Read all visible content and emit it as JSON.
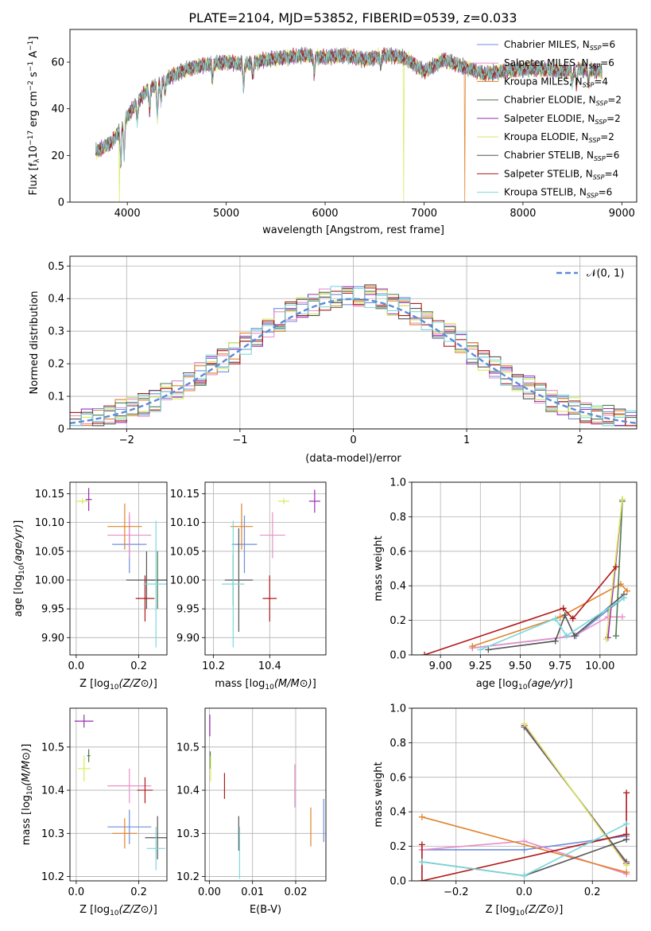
{
  "figure": {
    "title": "PLATE=2104, MJD=53852, FIBERID=0539, z=0.033",
    "colors": [
      "#6e8fdc",
      "#e88fc8",
      "#e0822a",
      "#4f7a4f",
      "#9b2fb0",
      "#d8ea5a",
      "#555555",
      "#b01818",
      "#7ad8dc"
    ]
  },
  "chart_data": [
    {
      "type": "line",
      "title": "PLATE=2104, MJD=53852, FIBERID=0539, z=0.033",
      "xlabel": "wavelength [Angstrom, rest frame]",
      "ylabel": "Flux [fλ10⁻¹⁷ erg cm⁻² s⁻¹ A⁻¹]",
      "ylabel_parts": {
        "pre": "Flux [f",
        "lam": "λ",
        "base": "10",
        "e1": "−17",
        "mid1": " erg cm",
        "e2": "−2",
        "mid2": " s",
        "e3": "−1",
        "mid3": " A",
        "e4": "−1",
        "end": "]"
      },
      "xlim": [
        3420,
        9150
      ],
      "ylim": [
        0,
        74
      ],
      "xticks": [
        4000,
        5000,
        6000,
        7000,
        8000,
        9000
      ],
      "yticks": [
        0,
        20,
        40,
        60
      ],
      "grid": false,
      "legend_position": "top-right",
      "legend": [
        {
          "name": "Chabrier MILES",
          "n": "6"
        },
        {
          "name": "Salpeter MILES",
          "n": "6"
        },
        {
          "name": "Kroupa MILES",
          "n": "4"
        },
        {
          "name": "Chabrier ELODIE",
          "n": "2"
        },
        {
          "name": "Salpeter ELODIE",
          "n": "2"
        },
        {
          "name": "Kroupa ELODIE",
          "n": "2"
        },
        {
          "name": "Chabrier STELIB",
          "n": "6"
        },
        {
          "name": "Salpeter STELIB",
          "n": "4"
        },
        {
          "name": "Kroupa STELIB",
          "n": "6"
        }
      ],
      "legend_sub": "SSP",
      "continuum": {
        "x": [
          3700,
          3850,
          3950,
          4050,
          4200,
          4400,
          4600,
          4800,
          5000,
          5200,
          5400,
          5600,
          5800,
          6000,
          6200,
          6400,
          6600,
          6800,
          7000,
          7200,
          7400,
          7600,
          7800,
          8000,
          8200,
          8400,
          8600,
          8800
        ],
        "y": [
          22,
          26,
          33,
          40,
          48,
          53,
          57,
          59,
          60,
          59,
          61,
          62,
          63,
          62,
          63,
          61,
          63,
          62,
          56,
          61,
          58,
          55,
          56,
          57,
          57,
          56,
          57,
          56
        ]
      },
      "absorption_lines": {
        "x": [
          3934,
          3968,
          4101,
          4226,
          4304,
          4340,
          4383,
          4861,
          5175,
          5270,
          5890,
          6563,
          8498,
          8542,
          8662
        ],
        "depth": [
          16,
          14,
          8,
          10,
          14,
          8,
          6,
          7,
          10,
          6,
          8,
          4,
          6,
          7,
          6
        ]
      },
      "dropouts": [
        {
          "series": 5,
          "x": 3920
        },
        {
          "series": 5,
          "x": 6795
        },
        {
          "series": 2,
          "x": 7410
        }
      ],
      "spectrum_range": [
        3680,
        8800
      ]
    },
    {
      "type": "histogram",
      "xlabel": "(data-model)/error",
      "ylabel": "Normed distribution",
      "xlim": [
        -2.5,
        2.5
      ],
      "ylim": [
        0,
        0.53
      ],
      "xticks": [
        -2,
        -1,
        0,
        1,
        2
      ],
      "yticks": [
        0,
        0.1,
        0.2,
        0.3,
        0.4,
        0.5
      ],
      "grid": true,
      "legend_position": "top-right",
      "legend": [
        {
          "name": "𝒩(0, 1)"
        }
      ],
      "curve": {
        "name": "𝒩(0, 1)",
        "mean": 0,
        "sigma": 1,
        "color": "#5b8bd8"
      },
      "bin_width": 0.1,
      "bin_start": -2.5,
      "jitter": [
        0.02,
        -0.015,
        0.03,
        -0.025,
        0.01,
        0.035,
        -0.03,
        0.02,
        -0.01,
        0.025,
        -0.02,
        0.015,
        0.03,
        -0.035,
        0.01,
        -0.015,
        0.025,
        -0.01,
        0.04,
        -0.02,
        0.015,
        -0.03,
        0.02,
        0.01,
        -0.025,
        0.03,
        -0.015,
        0.02,
        -0.02,
        0.035,
        -0.01,
        0.025,
        -0.03,
        0.015,
        -0.02,
        0.03,
        0.01,
        -0.025,
        0.02,
        -0.015,
        0.035,
        -0.02,
        0.01,
        0.025,
        -0.03,
        0.015,
        -0.01,
        0.02,
        -0.025,
        0.03
      ]
    },
    {
      "type": "scatter",
      "xlabel": "Z [log10(Z/Z⊙)]",
      "ylabel": "age  [log10(age/yr)]",
      "xlim": [
        -0.02,
        0.29
      ],
      "ylim": [
        9.87,
        10.17
      ],
      "xticks": [
        0.0,
        0.2
      ],
      "xtick_labels": [
        "0.0",
        "0.2"
      ],
      "yticks": [
        9.9,
        9.95,
        10.0,
        10.05,
        10.1,
        10.15
      ],
      "ytick_labels": [
        "9.90",
        "9.95",
        "10.00",
        "10.05",
        "10.10",
        "10.15"
      ],
      "grid": true,
      "points": [
        {
          "series": 0,
          "x": 0.17,
          "y": 10.062,
          "ex": 0.055,
          "ey": 0.05
        },
        {
          "series": 1,
          "x": 0.17,
          "y": 10.078,
          "ex": 0.07,
          "ey": 0.04
        },
        {
          "series": 2,
          "x": 0.155,
          "y": 10.093,
          "ex": 0.055,
          "ey": 0.04
        },
        {
          "series": 3,
          "x": 0.26,
          "y": 10.0,
          "ex": 0.03,
          "ey": 0.05
        },
        {
          "series": 4,
          "x": 0.04,
          "y": 10.14,
          "ex": 0.01,
          "ey": 0.02
        },
        {
          "series": 5,
          "x": 0.02,
          "y": 10.137,
          "ex": 0.02,
          "ey": 0.005
        },
        {
          "series": 6,
          "x": 0.225,
          "y": 10.0,
          "ex": 0.065,
          "ey": 0.05
        },
        {
          "series": 7,
          "x": 0.22,
          "y": 9.968,
          "ex": 0.03,
          "ey": 0.04
        },
        {
          "series": 8,
          "x": 0.255,
          "y": 9.993,
          "ex": 0.04,
          "ey": 0.11
        }
      ]
    },
    {
      "type": "scatter",
      "xlabel": "mass [log10(M/M⊙)]",
      "ylabel": "",
      "xlim": [
        10.17,
        10.6
      ],
      "ylim": [
        9.87,
        10.17
      ],
      "xticks": [
        10.2,
        10.4
      ],
      "xtick_labels": [
        "10.2",
        "10.4"
      ],
      "yticks": [
        9.9,
        9.95,
        10.0,
        10.05,
        10.1,
        10.15
      ],
      "ytick_labels": [
        "9.90",
        "9.95",
        "10.00",
        "10.05",
        "10.10",
        "10.15"
      ],
      "grid": true,
      "points": [
        {
          "series": 0,
          "x": 10.31,
          "y": 10.062,
          "ex": 0.045,
          "ey": 0.05
        },
        {
          "series": 1,
          "x": 10.41,
          "y": 10.078,
          "ex": 0.045,
          "ey": 0.04
        },
        {
          "series": 2,
          "x": 10.3,
          "y": 10.093,
          "ex": 0.04,
          "ey": 0.04
        },
        {
          "series": 3,
          "x": 10.27,
          "y": 10.0,
          "ex": 0.01,
          "ey": 0.045
        },
        {
          "series": 4,
          "x": 10.56,
          "y": 10.137,
          "ex": 0.02,
          "ey": 0.02
        },
        {
          "series": 5,
          "x": 10.45,
          "y": 10.137,
          "ex": 0.02,
          "ey": 0.005
        },
        {
          "series": 6,
          "x": 10.29,
          "y": 10.0,
          "ex": 0.05,
          "ey": 0.09
        },
        {
          "series": 7,
          "x": 10.4,
          "y": 9.968,
          "ex": 0.025,
          "ey": 0.04
        },
        {
          "series": 8,
          "x": 10.27,
          "y": 9.993,
          "ex": 0.04,
          "ey": 0.11
        }
      ]
    },
    {
      "type": "line",
      "xlabel": "age  [log10(age/yr)]",
      "ylabel": "mass weight",
      "xlim": [
        8.82,
        10.23
      ],
      "ylim": [
        0,
        1.0
      ],
      "xticks": [
        9.0,
        9.25,
        9.5,
        9.75,
        10.0
      ],
      "xtick_labels": [
        "9.00",
        "9.25",
        "9.50",
        "9.75",
        "10.00"
      ],
      "yticks": [
        0,
        0.2,
        0.4,
        0.6,
        0.8,
        1.0
      ],
      "ytick_labels": [
        "0.0",
        "0.2",
        "0.4",
        "0.6",
        "0.8",
        "1.0"
      ],
      "grid": true,
      "series": [
        {
          "name": "Chabrier MILES",
          "x": [
            9.2,
            9.85,
            10.05,
            10.15
          ],
          "y": [
            0.04,
            0.11,
            0.26,
            0.33
          ]
        },
        {
          "name": "Salpeter MILES",
          "x": [
            9.2,
            9.84,
            10.05,
            10.14
          ],
          "y": [
            0.04,
            0.11,
            0.22,
            0.22
          ]
        },
        {
          "name": "Kroupa MILES",
          "x": [
            9.2,
            9.75,
            10.13,
            10.17
          ],
          "y": [
            0.05,
            0.22,
            0.41,
            0.37
          ]
        },
        {
          "name": "Chabrier ELODIE",
          "x": [
            10.1,
            10.14
          ],
          "y": [
            0.11,
            0.89
          ]
        },
        {
          "name": "Salpeter ELODIE",
          "x": [
            10.05,
            10.14
          ],
          "y": [
            0.1,
            0.9
          ]
        },
        {
          "name": "Kroupa ELODIE",
          "x": [
            10.04,
            10.14
          ],
          "y": [
            0.09,
            0.9
          ]
        },
        {
          "name": "Chabrier STELIB",
          "x": [
            9.3,
            9.72,
            9.78,
            9.84,
            10.15
          ],
          "y": [
            0.03,
            0.08,
            0.23,
            0.11,
            0.35
          ]
        },
        {
          "name": "Salpeter STELIB",
          "x": [
            8.9,
            9.77,
            9.83,
            10.1
          ],
          "y": [
            0.0,
            0.27,
            0.21,
            0.51
          ]
        },
        {
          "name": "Kroupa STELIB",
          "x": [
            9.25,
            9.72,
            9.79,
            10.15
          ],
          "y": [
            0.03,
            0.21,
            0.11,
            0.33
          ]
        }
      ]
    },
    {
      "type": "scatter",
      "xlabel": "Z [log10(Z/Z⊙)]",
      "ylabel": "mass [log10(M/M⊙)]",
      "xlim": [
        -0.02,
        0.29
      ],
      "ylim": [
        10.19,
        10.59
      ],
      "xticks": [
        0.0,
        0.2
      ],
      "xtick_labels": [
        "0.0",
        "0.2"
      ],
      "yticks": [
        10.2,
        10.3,
        10.4,
        10.5
      ],
      "ytick_labels": [
        "10.2",
        "10.3",
        "10.4",
        "10.5"
      ],
      "grid": true,
      "points": [
        {
          "series": 0,
          "x": 0.17,
          "y": 10.315,
          "ex": 0.07,
          "ey": 0.04
        },
        {
          "series": 1,
          "x": 0.17,
          "y": 10.41,
          "ex": 0.07,
          "ey": 0.04
        },
        {
          "series": 2,
          "x": 0.155,
          "y": 10.3,
          "ex": 0.04,
          "ey": 0.035
        },
        {
          "series": 3,
          "x": 0.04,
          "y": 10.48,
          "ex": 0.005,
          "ey": 0.015
        },
        {
          "series": 4,
          "x": 0.025,
          "y": 10.56,
          "ex": 0.03,
          "ey": 0.015
        },
        {
          "series": 5,
          "x": 0.025,
          "y": 10.45,
          "ex": 0.02,
          "ey": 0.03
        },
        {
          "series": 6,
          "x": 0.26,
          "y": 10.29,
          "ex": 0.04,
          "ey": 0.05
        },
        {
          "series": 7,
          "x": 0.22,
          "y": 10.4,
          "ex": 0.025,
          "ey": 0.03
        },
        {
          "series": 8,
          "x": 0.255,
          "y": 10.265,
          "ex": 0.03,
          "ey": 0.05
        }
      ]
    },
    {
      "type": "scatter",
      "xlabel": "E(B-V)",
      "ylabel": "",
      "xlim": [
        -0.001,
        0.027
      ],
      "ylim": [
        10.19,
        10.59
      ],
      "xticks": [
        0.0,
        0.01,
        0.02
      ],
      "xtick_labels": [
        "0.00",
        "0.01",
        "0.02"
      ],
      "yticks": [
        10.2,
        10.3,
        10.4,
        10.5
      ],
      "ytick_labels": [
        "10.2",
        "10.3",
        "10.4",
        "10.5"
      ],
      "grid": true,
      "points": [
        {
          "series": 0,
          "x": 0.0265,
          "y": 10.33,
          "ex": 0.0,
          "ey": 0.05
        },
        {
          "series": 1,
          "x": 0.0198,
          "y": 10.41,
          "ex": 0.0,
          "ey": 0.05
        },
        {
          "series": 2,
          "x": 0.0235,
          "y": 10.315,
          "ex": 0.0,
          "ey": 0.045
        },
        {
          "series": 3,
          "x": 0.0002,
          "y": 10.47,
          "ex": 0.0,
          "ey": 0.02
        },
        {
          "series": 4,
          "x": 0.0001,
          "y": 10.55,
          "ex": 0.0,
          "ey": 0.025
        },
        {
          "series": 5,
          "x": 0.0003,
          "y": 10.45,
          "ex": 0.0,
          "ey": 0.03
        },
        {
          "series": 6,
          "x": 0.0068,
          "y": 10.3,
          "ex": 0.0,
          "ey": 0.04
        },
        {
          "series": 7,
          "x": 0.0035,
          "y": 10.41,
          "ex": 0.0,
          "ey": 0.03
        },
        {
          "series": 8,
          "x": 0.007,
          "y": 10.255,
          "ex": 0.0,
          "ey": 0.06
        }
      ]
    },
    {
      "type": "line",
      "xlabel": "Z [log10(Z/Z⊙)]",
      "ylabel": "mass weight",
      "xlim": [
        -0.33,
        0.33
      ],
      "ylim": [
        0,
        1.0
      ],
      "xticks": [
        -0.2,
        0.0,
        0.2
      ],
      "xtick_labels": [
        "−0.2",
        "0.0",
        "0.2"
      ],
      "yticks": [
        0,
        0.2,
        0.4,
        0.6,
        0.8,
        1.0
      ],
      "ytick_labels": [
        "0.0",
        "0.2",
        "0.4",
        "0.6",
        "0.8",
        "1.0"
      ],
      "grid": true,
      "series": [
        {
          "name": "Chabrier MILES",
          "x": [
            -0.3,
            0.0,
            0.3
          ],
          "y": [
            0.18,
            0.18,
            0.26
          ]
        },
        {
          "name": "Salpeter MILES",
          "x": [
            -0.3,
            0.0,
            0.3
          ],
          "y": [
            0.18,
            0.23,
            0.04
          ]
        },
        {
          "name": "Kroupa MILES",
          "x": [
            -0.3,
            0.3
          ],
          "y": [
            0.37,
            0.05
          ]
        },
        {
          "name": "Chabrier ELODIE",
          "x": [
            0.0,
            0.3
          ],
          "y": [
            0.89,
            0.11
          ]
        },
        {
          "name": "Salpeter ELODIE",
          "x": [
            0.0,
            0.3
          ],
          "y": [
            0.9,
            0.1
          ]
        },
        {
          "name": "Kroupa ELODIE",
          "x": [
            0.0,
            0.3
          ],
          "y": [
            0.91,
            0.09
          ]
        },
        {
          "name": "Chabrier STELIB",
          "x": [
            -0.3,
            0.0,
            0.3
          ],
          "y": [
            0.11,
            0.03,
            0.24
          ]
        },
        {
          "name": "Salpeter STELIB",
          "x": [
            -0.3,
            -0.3,
            0.3,
            0.3
          ],
          "y": [
            0.21,
            0.0,
            0.27,
            0.51
          ]
        },
        {
          "name": "Kroupa STELIB",
          "x": [
            -0.3,
            0.0,
            0.3
          ],
          "y": [
            0.11,
            0.03,
            0.33
          ]
        }
      ]
    }
  ]
}
